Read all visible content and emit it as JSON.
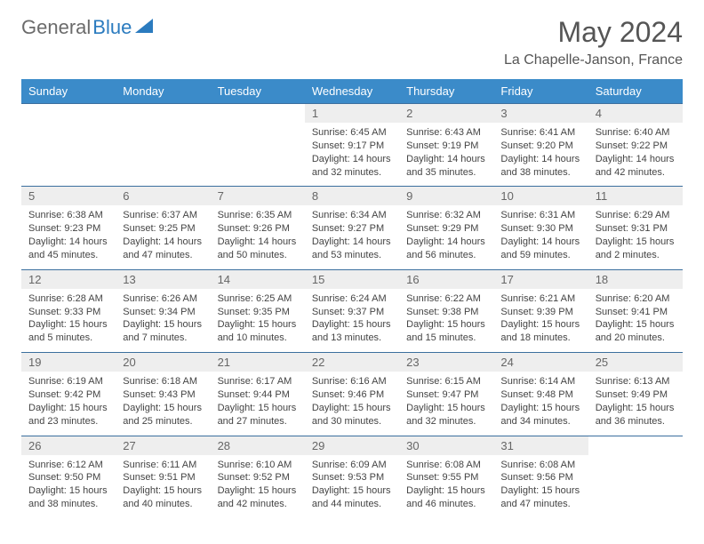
{
  "brand": {
    "part1": "General",
    "part2": "Blue"
  },
  "title": "May 2024",
  "location": "La Chapelle-Janson, France",
  "colors": {
    "header_bg": "#3b8bc9",
    "header_text": "#ffffff",
    "border": "#3b6f9e",
    "daynum_bg": "#eeeeee",
    "text": "#444444",
    "brand_gray": "#6b6b6b",
    "brand_blue": "#2b7bbf"
  },
  "weekdays": [
    "Sunday",
    "Monday",
    "Tuesday",
    "Wednesday",
    "Thursday",
    "Friday",
    "Saturday"
  ],
  "weeks": [
    [
      null,
      null,
      null,
      {
        "n": "1",
        "sr": "6:45 AM",
        "ss": "9:17 PM",
        "dl": "14 hours and 32 minutes."
      },
      {
        "n": "2",
        "sr": "6:43 AM",
        "ss": "9:19 PM",
        "dl": "14 hours and 35 minutes."
      },
      {
        "n": "3",
        "sr": "6:41 AM",
        "ss": "9:20 PM",
        "dl": "14 hours and 38 minutes."
      },
      {
        "n": "4",
        "sr": "6:40 AM",
        "ss": "9:22 PM",
        "dl": "14 hours and 42 minutes."
      }
    ],
    [
      {
        "n": "5",
        "sr": "6:38 AM",
        "ss": "9:23 PM",
        "dl": "14 hours and 45 minutes."
      },
      {
        "n": "6",
        "sr": "6:37 AM",
        "ss": "9:25 PM",
        "dl": "14 hours and 47 minutes."
      },
      {
        "n": "7",
        "sr": "6:35 AM",
        "ss": "9:26 PM",
        "dl": "14 hours and 50 minutes."
      },
      {
        "n": "8",
        "sr": "6:34 AM",
        "ss": "9:27 PM",
        "dl": "14 hours and 53 minutes."
      },
      {
        "n": "9",
        "sr": "6:32 AM",
        "ss": "9:29 PM",
        "dl": "14 hours and 56 minutes."
      },
      {
        "n": "10",
        "sr": "6:31 AM",
        "ss": "9:30 PM",
        "dl": "14 hours and 59 minutes."
      },
      {
        "n": "11",
        "sr": "6:29 AM",
        "ss": "9:31 PM",
        "dl": "15 hours and 2 minutes."
      }
    ],
    [
      {
        "n": "12",
        "sr": "6:28 AM",
        "ss": "9:33 PM",
        "dl": "15 hours and 5 minutes."
      },
      {
        "n": "13",
        "sr": "6:26 AM",
        "ss": "9:34 PM",
        "dl": "15 hours and 7 minutes."
      },
      {
        "n": "14",
        "sr": "6:25 AM",
        "ss": "9:35 PM",
        "dl": "15 hours and 10 minutes."
      },
      {
        "n": "15",
        "sr": "6:24 AM",
        "ss": "9:37 PM",
        "dl": "15 hours and 13 minutes."
      },
      {
        "n": "16",
        "sr": "6:22 AM",
        "ss": "9:38 PM",
        "dl": "15 hours and 15 minutes."
      },
      {
        "n": "17",
        "sr": "6:21 AM",
        "ss": "9:39 PM",
        "dl": "15 hours and 18 minutes."
      },
      {
        "n": "18",
        "sr": "6:20 AM",
        "ss": "9:41 PM",
        "dl": "15 hours and 20 minutes."
      }
    ],
    [
      {
        "n": "19",
        "sr": "6:19 AM",
        "ss": "9:42 PM",
        "dl": "15 hours and 23 minutes."
      },
      {
        "n": "20",
        "sr": "6:18 AM",
        "ss": "9:43 PM",
        "dl": "15 hours and 25 minutes."
      },
      {
        "n": "21",
        "sr": "6:17 AM",
        "ss": "9:44 PM",
        "dl": "15 hours and 27 minutes."
      },
      {
        "n": "22",
        "sr": "6:16 AM",
        "ss": "9:46 PM",
        "dl": "15 hours and 30 minutes."
      },
      {
        "n": "23",
        "sr": "6:15 AM",
        "ss": "9:47 PM",
        "dl": "15 hours and 32 minutes."
      },
      {
        "n": "24",
        "sr": "6:14 AM",
        "ss": "9:48 PM",
        "dl": "15 hours and 34 minutes."
      },
      {
        "n": "25",
        "sr": "6:13 AM",
        "ss": "9:49 PM",
        "dl": "15 hours and 36 minutes."
      }
    ],
    [
      {
        "n": "26",
        "sr": "6:12 AM",
        "ss": "9:50 PM",
        "dl": "15 hours and 38 minutes."
      },
      {
        "n": "27",
        "sr": "6:11 AM",
        "ss": "9:51 PM",
        "dl": "15 hours and 40 minutes."
      },
      {
        "n": "28",
        "sr": "6:10 AM",
        "ss": "9:52 PM",
        "dl": "15 hours and 42 minutes."
      },
      {
        "n": "29",
        "sr": "6:09 AM",
        "ss": "9:53 PM",
        "dl": "15 hours and 44 minutes."
      },
      {
        "n": "30",
        "sr": "6:08 AM",
        "ss": "9:55 PM",
        "dl": "15 hours and 46 minutes."
      },
      {
        "n": "31",
        "sr": "6:08 AM",
        "ss": "9:56 PM",
        "dl": "15 hours and 47 minutes."
      },
      null
    ]
  ],
  "labels": {
    "sunrise": "Sunrise:",
    "sunset": "Sunset:",
    "daylight": "Daylight:"
  }
}
